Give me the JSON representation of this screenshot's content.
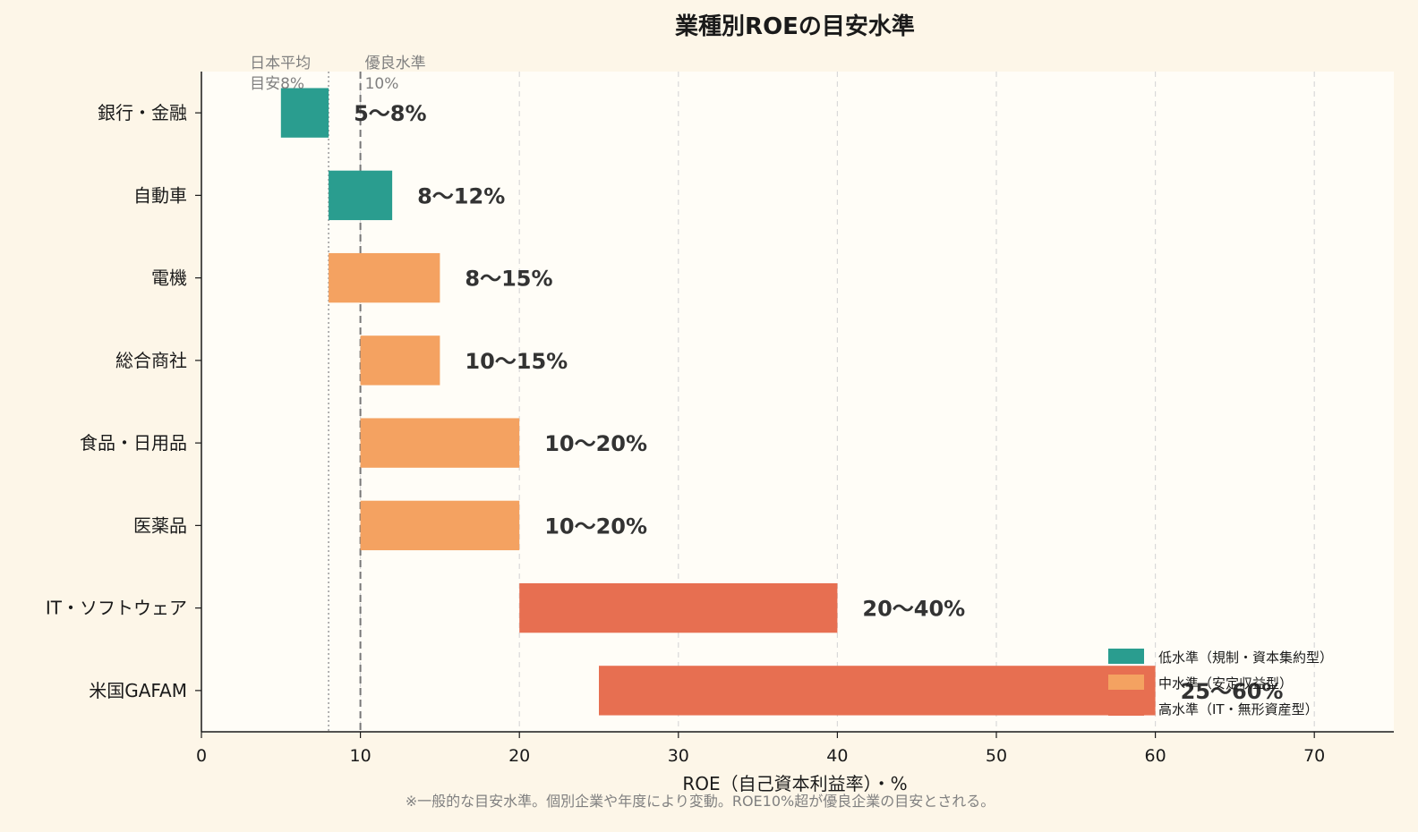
{
  "chart_data": {
    "type": "bar",
    "orientation": "horizontal-range",
    "title": "業種別ROEの目安水準",
    "xlabel": "ROE（自己資本利益率）・%",
    "xlim": [
      0,
      75
    ],
    "xticks": [
      0,
      10,
      20,
      30,
      40,
      50,
      60,
      70
    ],
    "grid": "x-dashed",
    "categories": [
      "銀行・金融",
      "自動車",
      "電機",
      "総合商社",
      "食品・日用品",
      "医薬品",
      "IT・ソフトウェア",
      "米国GAFAM"
    ],
    "ranges": [
      {
        "category": "銀行・金融",
        "low": 5,
        "high": 8,
        "label": "5〜8%",
        "level": "low"
      },
      {
        "category": "自動車",
        "low": 8,
        "high": 12,
        "label": "8〜12%",
        "level": "low"
      },
      {
        "category": "電機",
        "low": 8,
        "high": 15,
        "label": "8〜15%",
        "level": "mid"
      },
      {
        "category": "総合商社",
        "low": 10,
        "high": 15,
        "label": "10〜15%",
        "level": "mid"
      },
      {
        "category": "食品・日用品",
        "low": 10,
        "high": 20,
        "label": "10〜20%",
        "level": "mid"
      },
      {
        "category": "医薬品",
        "low": 10,
        "high": 20,
        "label": "10〜20%",
        "level": "mid"
      },
      {
        "category": "IT・ソフトウェア",
        "low": 20,
        "high": 40,
        "label": "20〜40%",
        "level": "high"
      },
      {
        "category": "米国GAFAM",
        "low": 25,
        "high": 60,
        "label": "25〜60%",
        "level": "high"
      }
    ],
    "reference_lines": [
      {
        "x": 8,
        "style": "dotted",
        "label_lines": [
          "日本平均",
          "目安8%"
        ]
      },
      {
        "x": 10,
        "style": "dashed",
        "label_lines": [
          "優良水準",
          "10%"
        ]
      }
    ],
    "legend": {
      "placement": "bottom-right",
      "entries": [
        {
          "level": "low",
          "label": "低水準（規制・資本集約型）"
        },
        {
          "level": "mid",
          "label": "中水準（安定収益型）"
        },
        {
          "level": "high",
          "label": "高水準（IT・無形資産型）"
        }
      ]
    },
    "colors": {
      "low": "#2a9d8f",
      "mid": "#f4a261",
      "high": "#e76f51"
    },
    "note": "※一般的な目安水準。個別企業や年度により変動。ROE10%超が優良企業の目安とされる。"
  }
}
